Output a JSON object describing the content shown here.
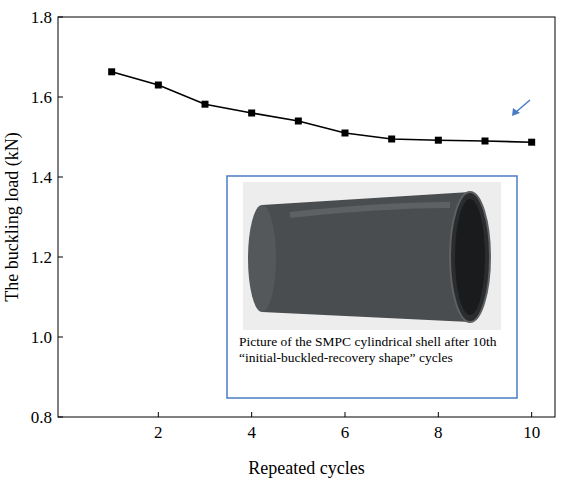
{
  "chart_data": {
    "type": "line",
    "y_label": "The buckling load (kN)",
    "x_label": "Repeated cycles",
    "annotation": "Picture of the SMPC cylindrical shell after 10th “initial-buckled-recovery shape” cycles",
    "x": [
      1,
      2,
      3,
      4,
      5,
      6,
      7,
      8,
      9,
      10
    ],
    "values": [
      1.663,
      1.63,
      1.582,
      1.56,
      1.54,
      1.51,
      1.495,
      1.492,
      1.49,
      1.487
    ],
    "color": "#000000",
    "marker": "square",
    "line_style": "solid",
    "xlim": [
      -0.15,
      10.5
    ],
    "xticks": [
      2,
      4,
      6,
      8,
      10
    ],
    "ylim": [
      0.8,
      1.8
    ],
    "yticks": [
      0.8,
      {
        "value": 1,
        "label": "1.0"
      },
      1.2,
      1.4,
      1.6,
      1.8
    ],
    "grid": false
  }
}
